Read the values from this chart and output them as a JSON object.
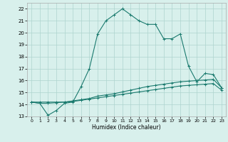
{
  "title": "",
  "xlabel": "Humidex (Indice chaleur)",
  "x_hours": [
    0,
    1,
    2,
    3,
    4,
    5,
    6,
    7,
    8,
    9,
    10,
    11,
    12,
    13,
    14,
    15,
    16,
    17,
    18,
    19,
    20,
    21,
    22,
    23
  ],
  "line1_y": [
    14.2,
    14.1,
    13.1,
    13.5,
    14.1,
    14.2,
    15.5,
    17.0,
    19.9,
    21.0,
    21.5,
    22.0,
    21.5,
    21.0,
    20.7,
    20.7,
    19.5,
    19.5,
    19.9,
    17.2,
    15.9,
    16.6,
    16.5,
    15.4
  ],
  "line2_y": [
    14.2,
    14.2,
    14.2,
    14.2,
    14.2,
    14.3,
    14.4,
    14.5,
    14.7,
    14.8,
    14.9,
    15.05,
    15.2,
    15.35,
    15.5,
    15.6,
    15.7,
    15.8,
    15.9,
    15.95,
    16.0,
    16.05,
    16.1,
    15.4
  ],
  "line3_y": [
    14.2,
    14.1,
    14.1,
    14.15,
    14.2,
    14.25,
    14.35,
    14.45,
    14.55,
    14.65,
    14.75,
    14.85,
    14.95,
    15.05,
    15.15,
    15.25,
    15.35,
    15.45,
    15.55,
    15.6,
    15.65,
    15.7,
    15.75,
    15.2
  ],
  "line_color": "#1a7a6e",
  "bg_color": "#d8f0ec",
  "grid_color": "#aed4ce",
  "ylim": [
    13,
    22.5
  ],
  "yticks": [
    13,
    14,
    15,
    16,
    17,
    18,
    19,
    20,
    21,
    22
  ],
  "xticks": [
    0,
    1,
    2,
    3,
    4,
    5,
    6,
    7,
    8,
    9,
    10,
    11,
    12,
    13,
    14,
    15,
    16,
    17,
    18,
    19,
    20,
    21,
    22,
    23
  ],
  "fig_width": 3.2,
  "fig_height": 2.0,
  "dpi": 100
}
